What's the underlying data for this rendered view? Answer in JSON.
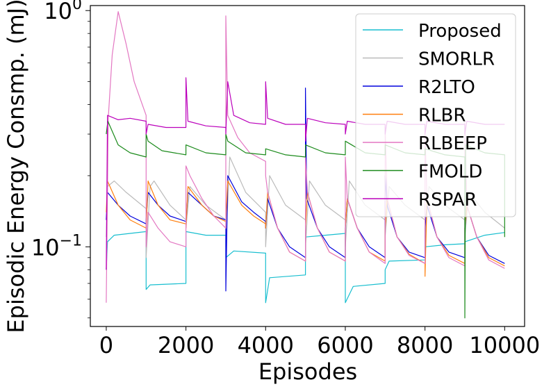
{
  "chart_data": {
    "type": "line",
    "title": "",
    "xlabel": "Episodes",
    "ylabel": "Episodic Energy Consmp. (mJ)",
    "yscale": "log",
    "xlim": [
      -400,
      10500
    ],
    "ylim": [
      0.046,
      1.05
    ],
    "x_ticks": [
      0,
      2000,
      4000,
      6000,
      8000,
      10000
    ],
    "x_tick_labels": [
      "0",
      "2000",
      "4000",
      "6000",
      "8000",
      "10000"
    ],
    "y_ticks": [
      {
        "value": 1.0,
        "base": "10",
        "exp": "0"
      },
      {
        "value": 0.1,
        "base": "10",
        "exp": "−1"
      }
    ],
    "legend_position": "top-right",
    "series": [
      {
        "name": "Proposed",
        "color": "#17becf",
        "points": [
          [
            0,
            0.08
          ],
          [
            30,
            0.105
          ],
          [
            200,
            0.112
          ],
          [
            1000,
            0.116
          ],
          [
            1000,
            0.066
          ],
          [
            1100,
            0.069
          ],
          [
            2000,
            0.07
          ],
          [
            2000,
            0.116
          ],
          [
            2500,
            0.112
          ],
          [
            3000,
            0.112
          ],
          [
            3000,
            0.09
          ],
          [
            3200,
            0.096
          ],
          [
            4000,
            0.094
          ],
          [
            4000,
            0.058
          ],
          [
            4100,
            0.074
          ],
          [
            5000,
            0.076
          ],
          [
            5000,
            0.11
          ],
          [
            5500,
            0.112
          ],
          [
            6000,
            0.114
          ],
          [
            6000,
            0.058
          ],
          [
            6200,
            0.068
          ],
          [
            7000,
            0.07
          ],
          [
            7000,
            0.08
          ],
          [
            7100,
            0.087
          ],
          [
            8000,
            0.088
          ],
          [
            8000,
            0.1
          ],
          [
            8500,
            0.102
          ],
          [
            9000,
            0.103
          ],
          [
            9000,
            0.105
          ],
          [
            9500,
            0.112
          ],
          [
            10000,
            0.115
          ]
        ]
      },
      {
        "name": "SMORLR",
        "color": "#bbbbbb",
        "points": [
          [
            0,
            0.11
          ],
          [
            30,
            0.18
          ],
          [
            200,
            0.19
          ],
          [
            500,
            0.17
          ],
          [
            1000,
            0.145
          ],
          [
            1000,
            0.09
          ],
          [
            1100,
            0.18
          ],
          [
            1200,
            0.19
          ],
          [
            1600,
            0.15
          ],
          [
            2000,
            0.13
          ],
          [
            2000,
            0.12
          ],
          [
            2100,
            0.18
          ],
          [
            2500,
            0.15
          ],
          [
            3000,
            0.13
          ],
          [
            3000,
            0.1
          ],
          [
            3100,
            0.24
          ],
          [
            3500,
            0.17
          ],
          [
            4000,
            0.14
          ],
          [
            4000,
            0.1
          ],
          [
            4100,
            0.2
          ],
          [
            4500,
            0.15
          ],
          [
            5000,
            0.13
          ],
          [
            5000,
            0.1
          ],
          [
            5100,
            0.19
          ],
          [
            5500,
            0.15
          ],
          [
            6000,
            0.13
          ],
          [
            6000,
            0.1
          ],
          [
            6100,
            0.19
          ],
          [
            6500,
            0.15
          ],
          [
            7000,
            0.13
          ],
          [
            7000,
            0.11
          ],
          [
            7100,
            0.18
          ],
          [
            7500,
            0.15
          ],
          [
            8000,
            0.13
          ],
          [
            8000,
            0.11
          ],
          [
            8100,
            0.18
          ],
          [
            8500,
            0.15
          ],
          [
            9000,
            0.13
          ],
          [
            9000,
            0.11
          ],
          [
            9100,
            0.17
          ],
          [
            9500,
            0.14
          ],
          [
            10000,
            0.12
          ]
        ]
      },
      {
        "name": "R2LTO",
        "color": "#0000dd",
        "points": [
          [
            0,
            0.13
          ],
          [
            30,
            0.17
          ],
          [
            300,
            0.15
          ],
          [
            600,
            0.135
          ],
          [
            1000,
            0.125
          ],
          [
            1000,
            0.13
          ],
          [
            1050,
            0.17
          ],
          [
            1300,
            0.15
          ],
          [
            1600,
            0.135
          ],
          [
            2000,
            0.128
          ],
          [
            2000,
            0.125
          ],
          [
            2050,
            0.17
          ],
          [
            2400,
            0.15
          ],
          [
            2700,
            0.135
          ],
          [
            3000,
            0.13
          ],
          [
            3000,
            0.065
          ],
          [
            3050,
            0.2
          ],
          [
            3400,
            0.155
          ],
          [
            3700,
            0.14
          ],
          [
            4000,
            0.128
          ],
          [
            4000,
            0.12
          ],
          [
            4050,
            0.16
          ],
          [
            4300,
            0.12
          ],
          [
            4600,
            0.1
          ],
          [
            5000,
            0.09
          ],
          [
            5000,
            0.47
          ],
          [
            5030,
            0.16
          ],
          [
            5300,
            0.12
          ],
          [
            5600,
            0.1
          ],
          [
            6000,
            0.09
          ],
          [
            6000,
            0.12
          ],
          [
            6050,
            0.16
          ],
          [
            6300,
            0.12
          ],
          [
            6600,
            0.1
          ],
          [
            7000,
            0.09
          ],
          [
            7000,
            0.2
          ],
          [
            7050,
            0.15
          ],
          [
            7300,
            0.11
          ],
          [
            7600,
            0.095
          ],
          [
            8000,
            0.09
          ],
          [
            8000,
            0.12
          ],
          [
            8050,
            0.15
          ],
          [
            8300,
            0.11
          ],
          [
            8600,
            0.095
          ],
          [
            9000,
            0.09
          ],
          [
            9000,
            0.12
          ],
          [
            9050,
            0.15
          ],
          [
            9300,
            0.11
          ],
          [
            9600,
            0.092
          ],
          [
            10000,
            0.085
          ]
        ]
      },
      {
        "name": "RLBR",
        "color": "#ff7f0e",
        "points": [
          [
            0,
            0.14
          ],
          [
            30,
            0.19
          ],
          [
            300,
            0.15
          ],
          [
            600,
            0.13
          ],
          [
            1000,
            0.12
          ],
          [
            1000,
            0.12
          ],
          [
            1050,
            0.19
          ],
          [
            1300,
            0.15
          ],
          [
            1600,
            0.13
          ],
          [
            2000,
            0.125
          ],
          [
            2000,
            0.12
          ],
          [
            2050,
            0.18
          ],
          [
            2400,
            0.15
          ],
          [
            2700,
            0.135
          ],
          [
            3000,
            0.128
          ],
          [
            3000,
            0.13
          ],
          [
            3050,
            0.19
          ],
          [
            3400,
            0.15
          ],
          [
            3700,
            0.135
          ],
          [
            4000,
            0.125
          ],
          [
            4000,
            0.12
          ],
          [
            4050,
            0.17
          ],
          [
            4300,
            0.12
          ],
          [
            4600,
            0.095
          ],
          [
            5000,
            0.087
          ],
          [
            5000,
            0.12
          ],
          [
            5050,
            0.17
          ],
          [
            5300,
            0.12
          ],
          [
            5600,
            0.095
          ],
          [
            6000,
            0.087
          ],
          [
            6000,
            0.12
          ],
          [
            6050,
            0.16
          ],
          [
            6300,
            0.12
          ],
          [
            6600,
            0.095
          ],
          [
            7000,
            0.087
          ],
          [
            7000,
            0.12
          ],
          [
            7050,
            0.16
          ],
          [
            7300,
            0.11
          ],
          [
            7600,
            0.093
          ],
          [
            8000,
            0.085
          ],
          [
            8000,
            0.075
          ],
          [
            8050,
            0.16
          ],
          [
            8300,
            0.11
          ],
          [
            8600,
            0.092
          ],
          [
            9000,
            0.085
          ],
          [
            9000,
            0.12
          ],
          [
            9050,
            0.15
          ],
          [
            9300,
            0.11
          ],
          [
            9600,
            0.09
          ],
          [
            10000,
            0.083
          ]
        ]
      },
      {
        "name": "RLBEEP",
        "color": "#e377c2",
        "points": [
          [
            0,
            0.058
          ],
          [
            50,
            0.35
          ],
          [
            150,
            0.65
          ],
          [
            300,
            0.99
          ],
          [
            500,
            0.72
          ],
          [
            700,
            0.5
          ],
          [
            1000,
            0.36
          ],
          [
            1000,
            0.1
          ],
          [
            1050,
            0.14
          ],
          [
            1300,
            0.12
          ],
          [
            1600,
            0.105
          ],
          [
            2000,
            0.1
          ],
          [
            2000,
            0.22
          ],
          [
            2100,
            0.2
          ],
          [
            2400,
            0.16
          ],
          [
            2700,
            0.135
          ],
          [
            3000,
            0.12
          ],
          [
            3000,
            0.95
          ],
          [
            3050,
            0.36
          ],
          [
            3300,
            0.29
          ],
          [
            3600,
            0.25
          ],
          [
            4000,
            0.23
          ],
          [
            4000,
            0.2
          ],
          [
            4050,
            0.17
          ],
          [
            4300,
            0.12
          ],
          [
            4600,
            0.095
          ],
          [
            5000,
            0.087
          ],
          [
            5000,
            0.24
          ],
          [
            5050,
            0.17
          ],
          [
            5300,
            0.12
          ],
          [
            5600,
            0.095
          ],
          [
            6000,
            0.087
          ],
          [
            6000,
            0.24
          ],
          [
            6050,
            0.16
          ],
          [
            6300,
            0.12
          ],
          [
            6600,
            0.095
          ],
          [
            7000,
            0.085
          ],
          [
            7000,
            0.32
          ],
          [
            7050,
            0.16
          ],
          [
            7300,
            0.11
          ],
          [
            7600,
            0.092
          ],
          [
            8000,
            0.085
          ],
          [
            8000,
            0.3
          ],
          [
            8050,
            0.16
          ],
          [
            8300,
            0.11
          ],
          [
            8600,
            0.09
          ],
          [
            9000,
            0.083
          ],
          [
            9000,
            0.34
          ],
          [
            9050,
            0.15
          ],
          [
            9300,
            0.11
          ],
          [
            9600,
            0.088
          ],
          [
            10000,
            0.081
          ]
        ]
      },
      {
        "name": "FMOLD",
        "color": "#1a8a1a",
        "points": [
          [
            0,
            0.3
          ],
          [
            40,
            0.34
          ],
          [
            300,
            0.27
          ],
          [
            600,
            0.25
          ],
          [
            1000,
            0.24
          ],
          [
            1000,
            0.3
          ],
          [
            1050,
            0.28
          ],
          [
            1400,
            0.255
          ],
          [
            2000,
            0.245
          ],
          [
            2000,
            0.27
          ],
          [
            2500,
            0.25
          ],
          [
            3000,
            0.245
          ],
          [
            3000,
            0.3
          ],
          [
            3050,
            0.28
          ],
          [
            3500,
            0.25
          ],
          [
            4000,
            0.245
          ],
          [
            4000,
            0.26
          ],
          [
            4500,
            0.245
          ],
          [
            5000,
            0.24
          ],
          [
            5000,
            0.27
          ],
          [
            5500,
            0.25
          ],
          [
            6000,
            0.245
          ],
          [
            6000,
            0.28
          ],
          [
            6500,
            0.25
          ],
          [
            7000,
            0.245
          ],
          [
            7000,
            0.27
          ],
          [
            7500,
            0.25
          ],
          [
            8000,
            0.245
          ],
          [
            8000,
            0.26
          ],
          [
            8500,
            0.245
          ],
          [
            9000,
            0.24
          ],
          [
            9000,
            0.05
          ],
          [
            9020,
            0.27
          ],
          [
            9500,
            0.25
          ],
          [
            10000,
            0.245
          ],
          [
            10000,
            0.11
          ]
        ]
      },
      {
        "name": "RSPAR",
        "color": "#bb00bb",
        "points": [
          [
            0,
            0.08
          ],
          [
            30,
            0.36
          ],
          [
            300,
            0.345
          ],
          [
            600,
            0.35
          ],
          [
            1000,
            0.34
          ],
          [
            1000,
            0.3
          ],
          [
            1050,
            0.33
          ],
          [
            1500,
            0.32
          ],
          [
            2000,
            0.32
          ],
          [
            2000,
            0.52
          ],
          [
            2050,
            0.34
          ],
          [
            2500,
            0.325
          ],
          [
            3000,
            0.32
          ],
          [
            3000,
            0.3
          ],
          [
            3050,
            0.5
          ],
          [
            3200,
            0.36
          ],
          [
            3600,
            0.335
          ],
          [
            4000,
            0.33
          ],
          [
            4000,
            0.5
          ],
          [
            4050,
            0.35
          ],
          [
            4500,
            0.33
          ],
          [
            5000,
            0.33
          ],
          [
            5000,
            0.28
          ],
          [
            5050,
            0.35
          ],
          [
            5500,
            0.335
          ],
          [
            6000,
            0.33
          ],
          [
            6000,
            0.3
          ],
          [
            6050,
            0.34
          ],
          [
            6500,
            0.33
          ],
          [
            7000,
            0.33
          ],
          [
            7000,
            0.3
          ],
          [
            7050,
            0.34
          ],
          [
            7500,
            0.33
          ],
          [
            8000,
            0.33
          ],
          [
            8000,
            0.3
          ],
          [
            8050,
            0.34
          ],
          [
            8500,
            0.33
          ],
          [
            9000,
            0.33
          ],
          [
            9000,
            0.3
          ],
          [
            9050,
            0.34
          ],
          [
            9500,
            0.33
          ],
          [
            10000,
            0.33
          ]
        ]
      }
    ]
  }
}
